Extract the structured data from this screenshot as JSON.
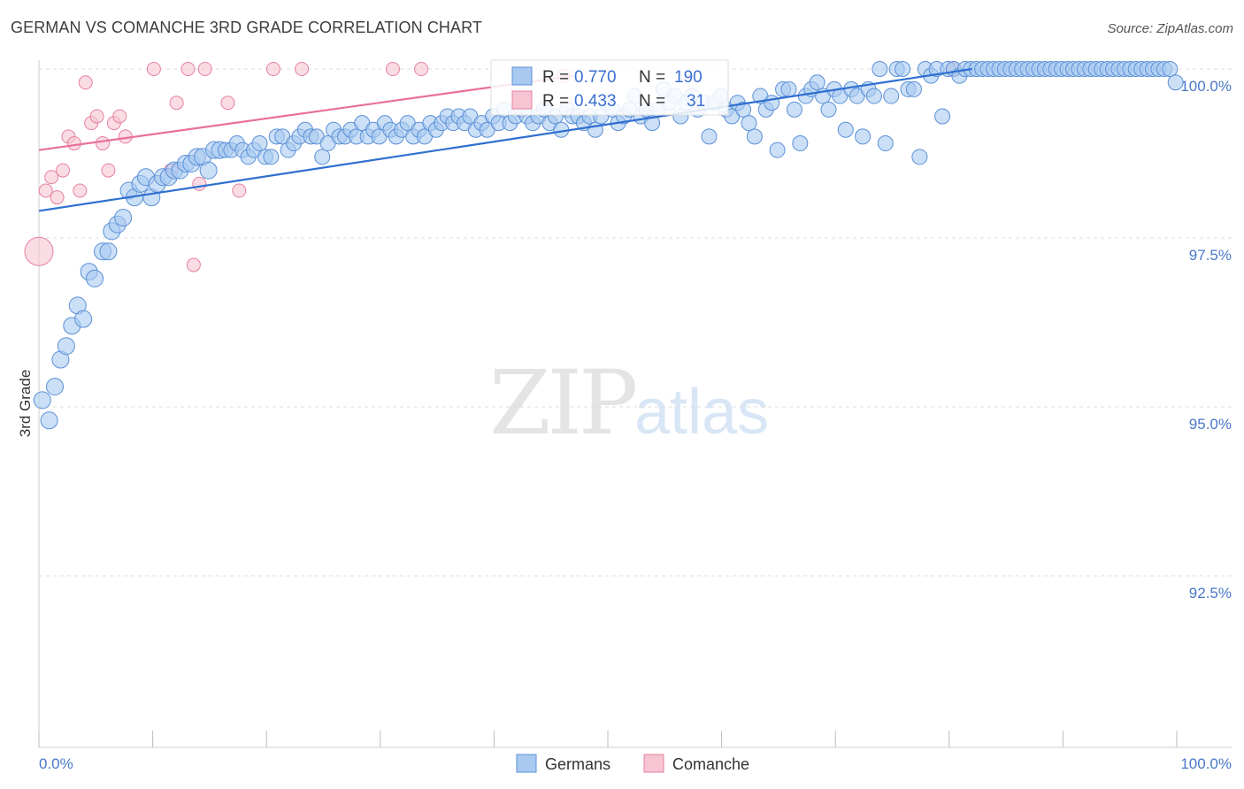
{
  "title": "GERMAN VS COMANCHE 3RD GRADE CORRELATION CHART",
  "source": "Source: ZipAtlas.com",
  "watermark": {
    "zip": "ZIP",
    "atlas": "atlas"
  },
  "colors": {
    "blue_fill": "#a9c9f0",
    "blue_stroke": "#5b90d8",
    "blue_line": "#2f6fcf",
    "pink_fill": "#f6c4d2",
    "pink_stroke": "#e6809e",
    "pink_line": "#e8709a",
    "tick_text": "#4a78c8",
    "grid": "#d9d9d9"
  },
  "legend": {
    "r_label": "R =",
    "n_label": "N =",
    "items": [
      {
        "name": "Germans",
        "r": "0.770",
        "n": "190"
      },
      {
        "name": "Comanche",
        "r": "0.433",
        "n": "31"
      }
    ]
  },
  "chart_data": {
    "type": "scatter",
    "title": "GERMAN VS COMANCHE 3RD GRADE CORRELATION CHART",
    "xlabel": "",
    "ylabel": "3rd Grade",
    "xlim": [
      0,
      100
    ],
    "ylim": [
      90.0,
      100.3
    ],
    "x_tick_labels": [
      "0.0%",
      "100.0%"
    ],
    "y_ticks": [
      92.5,
      95.0,
      97.5,
      100.0
    ],
    "y_tick_labels": [
      "92.5%",
      "95.0%",
      "97.5%",
      "100.0%"
    ],
    "grid": true,
    "series": [
      {
        "name": "Germans",
        "r": 0.77,
        "n": 190,
        "trend": {
          "x0": 0,
          "y0": 97.9,
          "x1": 82,
          "y1": 100.0
        },
        "points": [
          [
            0.3,
            95.1
          ],
          [
            0.9,
            94.8
          ],
          [
            1.4,
            95.3
          ],
          [
            1.9,
            95.7
          ],
          [
            2.4,
            95.9
          ],
          [
            2.9,
            96.2
          ],
          [
            3.4,
            96.5
          ],
          [
            3.9,
            96.3
          ],
          [
            4.4,
            97.0
          ],
          [
            4.9,
            96.9
          ],
          [
            5.6,
            97.3
          ],
          [
            6.1,
            97.3
          ],
          [
            6.4,
            97.6
          ],
          [
            6.9,
            97.7
          ],
          [
            7.4,
            97.8
          ],
          [
            7.9,
            98.2
          ],
          [
            8.4,
            98.1
          ],
          [
            8.9,
            98.3
          ],
          [
            9.4,
            98.4
          ],
          [
            9.9,
            98.1
          ],
          [
            10.4,
            98.3
          ],
          [
            10.9,
            98.4
          ],
          [
            11.4,
            98.4
          ],
          [
            11.9,
            98.5
          ],
          [
            12.4,
            98.5
          ],
          [
            12.9,
            98.6
          ],
          [
            13.4,
            98.6
          ],
          [
            13.9,
            98.7
          ],
          [
            14.4,
            98.7
          ],
          [
            14.9,
            98.5
          ],
          [
            15.4,
            98.8
          ],
          [
            15.9,
            98.8
          ],
          [
            16.4,
            98.8
          ],
          [
            16.9,
            98.8
          ],
          [
            17.4,
            98.9
          ],
          [
            17.9,
            98.8
          ],
          [
            18.4,
            98.7
          ],
          [
            18.9,
            98.8
          ],
          [
            19.4,
            98.9
          ],
          [
            19.9,
            98.7
          ],
          [
            20.4,
            98.7
          ],
          [
            20.9,
            99.0
          ],
          [
            21.4,
            99.0
          ],
          [
            21.9,
            98.8
          ],
          [
            22.4,
            98.9
          ],
          [
            22.9,
            99.0
          ],
          [
            23.4,
            99.1
          ],
          [
            23.9,
            99.0
          ],
          [
            24.4,
            99.0
          ],
          [
            24.9,
            98.7
          ],
          [
            25.4,
            98.9
          ],
          [
            25.9,
            99.1
          ],
          [
            26.4,
            99.0
          ],
          [
            26.9,
            99.0
          ],
          [
            27.4,
            99.1
          ],
          [
            27.9,
            99.0
          ],
          [
            28.4,
            99.2
          ],
          [
            28.9,
            99.0
          ],
          [
            29.4,
            99.1
          ],
          [
            29.9,
            99.0
          ],
          [
            30.4,
            99.2
          ],
          [
            30.9,
            99.1
          ],
          [
            31.4,
            99.0
          ],
          [
            31.9,
            99.1
          ],
          [
            32.4,
            99.2
          ],
          [
            32.9,
            99.0
          ],
          [
            33.4,
            99.1
          ],
          [
            33.9,
            99.0
          ],
          [
            34.4,
            99.2
          ],
          [
            34.9,
            99.1
          ],
          [
            35.4,
            99.2
          ],
          [
            35.9,
            99.3
          ],
          [
            36.4,
            99.2
          ],
          [
            36.9,
            99.3
          ],
          [
            37.4,
            99.2
          ],
          [
            37.9,
            99.3
          ],
          [
            38.4,
            99.1
          ],
          [
            38.9,
            99.2
          ],
          [
            39.4,
            99.1
          ],
          [
            39.9,
            99.3
          ],
          [
            40.4,
            99.2
          ],
          [
            40.9,
            99.4
          ],
          [
            41.4,
            99.2
          ],
          [
            41.9,
            99.3
          ],
          [
            42.4,
            99.4
          ],
          [
            42.9,
            99.3
          ],
          [
            43.4,
            99.2
          ],
          [
            43.9,
            99.3
          ],
          [
            44.4,
            99.4
          ],
          [
            44.9,
            99.2
          ],
          [
            45.4,
            99.3
          ],
          [
            45.9,
            99.1
          ],
          [
            46.4,
            99.4
          ],
          [
            46.9,
            99.3
          ],
          [
            47.4,
            99.3
          ],
          [
            47.9,
            99.2
          ],
          [
            48.4,
            99.3
          ],
          [
            48.9,
            99.1
          ],
          [
            49.4,
            99.3
          ],
          [
            49.9,
            99.5
          ],
          [
            50.4,
            99.4
          ],
          [
            50.9,
            99.2
          ],
          [
            51.4,
            99.3
          ],
          [
            51.9,
            99.4
          ],
          [
            52.4,
            99.6
          ],
          [
            52.9,
            99.3
          ],
          [
            53.4,
            99.4
          ],
          [
            53.9,
            99.2
          ],
          [
            54.4,
            99.4
          ],
          [
            54.9,
            99.7
          ],
          [
            55.4,
            99.5
          ],
          [
            55.9,
            99.6
          ],
          [
            56.4,
            99.3
          ],
          [
            56.9,
            99.5
          ],
          [
            57.4,
            99.6
          ],
          [
            57.9,
            99.4
          ],
          [
            58.4,
            99.5
          ],
          [
            58.9,
            99.0
          ],
          [
            59.4,
            99.5
          ],
          [
            59.9,
            99.6
          ],
          [
            60.4,
            99.4
          ],
          [
            60.9,
            99.3
          ],
          [
            61.4,
            99.5
          ],
          [
            61.9,
            99.4
          ],
          [
            62.4,
            99.2
          ],
          [
            62.9,
            99.0
          ],
          [
            63.4,
            99.6
          ],
          [
            63.9,
            99.4
          ],
          [
            64.4,
            99.5
          ],
          [
            64.9,
            98.8
          ],
          [
            65.4,
            99.7
          ],
          [
            65.9,
            99.7
          ],
          [
            66.4,
            99.4
          ],
          [
            66.9,
            98.9
          ],
          [
            67.4,
            99.6
          ],
          [
            67.9,
            99.7
          ],
          [
            68.4,
            99.8
          ],
          [
            68.9,
            99.6
          ],
          [
            69.4,
            99.4
          ],
          [
            69.9,
            99.7
          ],
          [
            70.4,
            99.6
          ],
          [
            70.9,
            99.1
          ],
          [
            71.4,
            99.7
          ],
          [
            71.9,
            99.6
          ],
          [
            72.4,
            99.0
          ],
          [
            72.9,
            99.7
          ],
          [
            73.4,
            99.6
          ],
          [
            73.9,
            100.0
          ],
          [
            74.4,
            98.9
          ],
          [
            74.9,
            99.6
          ],
          [
            75.4,
            100.0
          ],
          [
            75.9,
            100.0
          ],
          [
            76.4,
            99.7
          ],
          [
            76.9,
            99.7
          ],
          [
            77.4,
            98.7
          ],
          [
            77.9,
            100.0
          ],
          [
            78.4,
            99.9
          ],
          [
            78.9,
            100.0
          ],
          [
            79.4,
            99.3
          ],
          [
            79.9,
            100.0
          ],
          [
            80.4,
            100.0
          ],
          [
            80.9,
            99.9
          ],
          [
            81.4,
            100.0
          ],
          [
            81.9,
            100.0
          ],
          [
            82.4,
            100.0
          ],
          [
            82.9,
            100.0
          ],
          [
            83.4,
            100.0
          ],
          [
            83.9,
            100.0
          ],
          [
            84.4,
            100.0
          ],
          [
            84.9,
            100.0
          ],
          [
            85.4,
            100.0
          ],
          [
            85.9,
            100.0
          ],
          [
            86.4,
            100.0
          ],
          [
            86.9,
            100.0
          ],
          [
            87.4,
            100.0
          ],
          [
            87.9,
            100.0
          ],
          [
            88.4,
            100.0
          ],
          [
            88.9,
            100.0
          ],
          [
            89.4,
            100.0
          ],
          [
            89.9,
            100.0
          ],
          [
            90.4,
            100.0
          ],
          [
            90.9,
            100.0
          ],
          [
            91.4,
            100.0
          ],
          [
            91.9,
            100.0
          ],
          [
            92.4,
            100.0
          ],
          [
            92.9,
            100.0
          ],
          [
            93.4,
            100.0
          ],
          [
            93.9,
            100.0
          ],
          [
            94.4,
            100.0
          ],
          [
            94.9,
            100.0
          ],
          [
            95.4,
            100.0
          ],
          [
            95.9,
            100.0
          ],
          [
            96.4,
            100.0
          ],
          [
            96.9,
            100.0
          ],
          [
            97.4,
            100.0
          ],
          [
            97.9,
            100.0
          ],
          [
            98.4,
            100.0
          ],
          [
            98.9,
            100.0
          ],
          [
            99.4,
            100.0
          ],
          [
            99.9,
            99.8
          ]
        ]
      },
      {
        "name": "Comanche",
        "r": 0.433,
        "n": 31,
        "trend": {
          "x0": 0,
          "y0": 98.8,
          "x1": 47,
          "y1": 99.9
        },
        "points": [
          [
            0.0,
            97.3
          ],
          [
            0.6,
            98.2
          ],
          [
            1.1,
            98.4
          ],
          [
            1.6,
            98.1
          ],
          [
            2.1,
            98.5
          ],
          [
            2.6,
            99.0
          ],
          [
            3.1,
            98.9
          ],
          [
            3.6,
            98.2
          ],
          [
            4.1,
            99.8
          ],
          [
            4.6,
            99.2
          ],
          [
            5.1,
            99.3
          ],
          [
            5.6,
            98.9
          ],
          [
            6.1,
            98.5
          ],
          [
            6.6,
            99.2
          ],
          [
            7.1,
            99.3
          ],
          [
            7.6,
            99.0
          ],
          [
            10.1,
            100.0
          ],
          [
            11.6,
            98.5
          ],
          [
            12.1,
            99.5
          ],
          [
            13.1,
            100.0
          ],
          [
            13.6,
            97.1
          ],
          [
            14.1,
            98.3
          ],
          [
            14.6,
            100.0
          ],
          [
            16.6,
            99.5
          ],
          [
            17.6,
            98.2
          ],
          [
            20.6,
            100.0
          ],
          [
            23.1,
            100.0
          ],
          [
            31.1,
            100.0
          ],
          [
            33.6,
            100.0
          ],
          [
            46.1,
            99.9
          ],
          [
            80.3,
            100.0
          ]
        ]
      }
    ]
  }
}
